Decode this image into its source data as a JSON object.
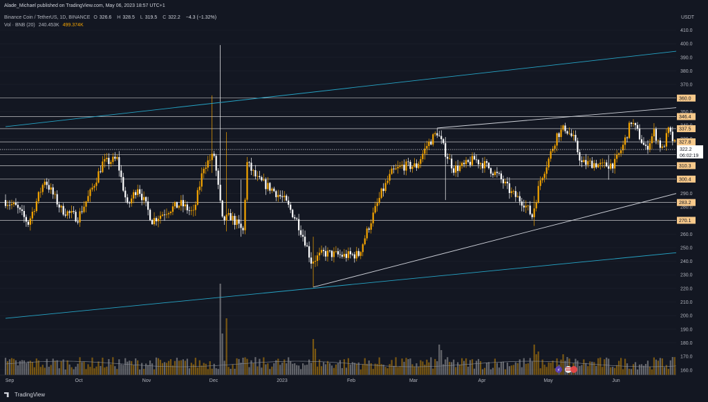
{
  "publish_line": "Alade_Michael published on TradingView.com, May 06, 2023 18:57 UTC+1",
  "legend": {
    "symbol": "Binance Coin / TetherUS, 1D, BINANCE",
    "open_label": "O",
    "open": "326.6",
    "high_label": "H",
    "high": "328.5",
    "low_label": "L",
    "low": "319.5",
    "close_label": "C",
    "close": "322.2",
    "change": "−4.3 (−1.32%)",
    "vol_label": "Vol · BNB (20)",
    "vol_value": "240.453K",
    "vol_ma": "499.374K"
  },
  "footer": {
    "brand": "TradingView"
  },
  "colors": {
    "background": "#131722",
    "bull": "#f7a600",
    "bear": "#ffffff",
    "channel": "#26a6c8",
    "wedge": "#d1d4dc",
    "level_tag": "#f7c98b",
    "current_tag": "#ffffff"
  },
  "chart_data": {
    "type": "candlestick",
    "symbol": "BNBUSDT",
    "timeframe": "1D",
    "y_axis_unit": "USDT",
    "ylim": [
      155,
      418
    ],
    "y_ticks": [
      "410.0",
      "400.0",
      "390.0",
      "380.0",
      "370.0",
      "360.0",
      "350.0",
      "340.0",
      "330.0",
      "320.0",
      "310.0",
      "300.0",
      "290.0",
      "280.0",
      "270.0",
      "260.0",
      "250.0",
      "240.0",
      "230.0",
      "220.0",
      "210.0",
      "200.0",
      "190.0",
      "180.0",
      "170.0",
      "160.0"
    ],
    "x_ticks": [
      "Sep",
      "Oct",
      "Nov",
      "Dec",
      "2023",
      "Feb",
      "Mar",
      "Apr",
      "May",
      "Jun"
    ],
    "horizontal_levels": [
      "360.0",
      "346.4",
      "337.5",
      "327.8",
      "318.4",
      "310.3",
      "300.4",
      "283.2",
      "270.1"
    ],
    "current_price": "322.2",
    "countdown": "06:02:19",
    "anchors": [
      {
        "t": 0,
        "p": 285
      },
      {
        "t": 6,
        "p": 280
      },
      {
        "t": 12,
        "p": 268
      },
      {
        "t": 20,
        "p": 300
      },
      {
        "t": 28,
        "p": 278
      },
      {
        "t": 36,
        "p": 272
      },
      {
        "t": 42,
        "p": 290
      },
      {
        "t": 48,
        "p": 312
      },
      {
        "t": 55,
        "p": 315
      },
      {
        "t": 60,
        "p": 280
      },
      {
        "t": 65,
        "p": 295
      },
      {
        "t": 72,
        "p": 270
      },
      {
        "t": 80,
        "p": 278
      },
      {
        "t": 86,
        "p": 282
      },
      {
        "t": 92,
        "p": 275
      },
      {
        "t": 97,
        "p": 310
      },
      {
        "t": 102,
        "p": 318
      },
      {
        "t": 106,
        "p": 270
      },
      {
        "t": 110,
        "p": 273
      },
      {
        "t": 116,
        "p": 262
      },
      {
        "t": 118,
        "p": 312
      },
      {
        "t": 123,
        "p": 300
      },
      {
        "t": 130,
        "p": 293
      },
      {
        "t": 136,
        "p": 285
      },
      {
        "t": 142,
        "p": 270
      },
      {
        "t": 146,
        "p": 255
      },
      {
        "t": 149,
        "p": 240
      },
      {
        "t": 155,
        "p": 246
      },
      {
        "t": 165,
        "p": 244
      },
      {
        "t": 172,
        "p": 245
      },
      {
        "t": 178,
        "p": 270
      },
      {
        "t": 183,
        "p": 290
      },
      {
        "t": 188,
        "p": 305
      },
      {
        "t": 193,
        "p": 310
      },
      {
        "t": 200,
        "p": 310
      },
      {
        "t": 205,
        "p": 325
      },
      {
        "t": 210,
        "p": 335
      },
      {
        "t": 214,
        "p": 320
      },
      {
        "t": 218,
        "p": 308
      },
      {
        "t": 223,
        "p": 310
      },
      {
        "t": 228,
        "p": 315
      },
      {
        "t": 234,
        "p": 310
      },
      {
        "t": 240,
        "p": 302
      },
      {
        "t": 246,
        "p": 290
      },
      {
        "t": 252,
        "p": 283
      },
      {
        "t": 256,
        "p": 273
      },
      {
        "t": 260,
        "p": 300
      },
      {
        "t": 264,
        "p": 315
      },
      {
        "t": 268,
        "p": 333
      },
      {
        "t": 272,
        "p": 338
      },
      {
        "t": 276,
        "p": 330
      },
      {
        "t": 280,
        "p": 312
      },
      {
        "t": 286,
        "p": 312
      },
      {
        "t": 290,
        "p": 310
      },
      {
        "t": 296,
        "p": 312
      },
      {
        "t": 300,
        "p": 325
      },
      {
        "t": 304,
        "p": 343
      },
      {
        "t": 307,
        "p": 335
      },
      {
        "t": 311,
        "p": 322
      },
      {
        "t": 315,
        "p": 335
      },
      {
        "t": 319,
        "p": 322
      },
      {
        "t": 322,
        "p": 336
      },
      {
        "t": 325,
        "p": 326
      },
      {
        "t": 327,
        "p": 325
      },
      {
        "t": 328,
        "p": 322.2
      }
    ],
    "spikes": [
      {
        "t": 100,
        "high": 362,
        "low": 305
      },
      {
        "t": 104,
        "high": 399,
        "low": 338
      },
      {
        "t": 107,
        "high": 335,
        "low": 262
      },
      {
        "t": 114,
        "high": 300,
        "low": 258
      },
      {
        "t": 149,
        "high": 258,
        "low": 221
      },
      {
        "t": 213,
        "high": 330,
        "low": 285
      },
      {
        "t": 256,
        "high": 288,
        "low": 266
      },
      {
        "t": 292,
        "high": 318,
        "low": 300
      }
    ],
    "trendlines": [
      {
        "name": "",
        "color": "channel",
        "from": {
          "t": 0,
          "p": 339
        },
        "to": {
          "t": 369,
          "p": 402
        }
      },
      {
        "name": "",
        "color": "channel",
        "from": {
          "t": 0,
          "p": 198
        },
        "to": {
          "t": 377,
          "p": 254
        }
      },
      {
        "name": "",
        "color": "wedge",
        "from": {
          "t": 209,
          "p": 338
        },
        "to": {
          "t": 356,
          "p": 357
        }
      },
      {
        "name": "",
        "color": "wedge",
        "from": {
          "t": 149,
          "p": 221
        },
        "to": {
          "t": 361,
          "p": 304
        }
      }
    ]
  }
}
